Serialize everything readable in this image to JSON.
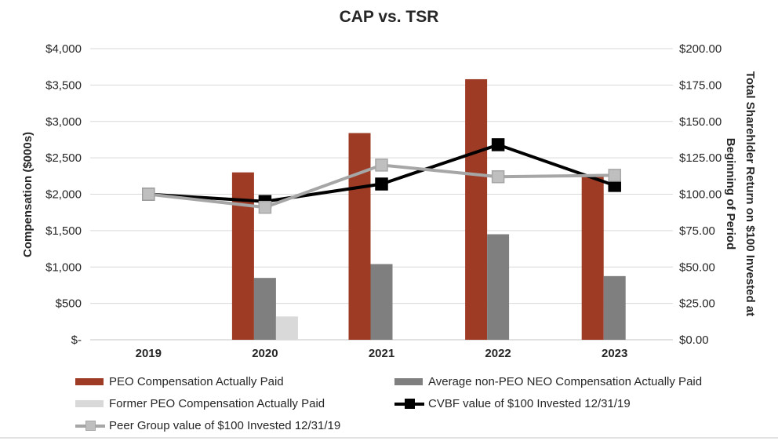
{
  "title": "CAP vs. TSR",
  "chart_data": {
    "type": "bar",
    "subtype": "grouped bars + lines, dual y-axis",
    "categories": [
      "2019",
      "2020",
      "2021",
      "2022",
      "2023"
    ],
    "bar_series": [
      {
        "name": "PEO Compensation Actually Paid",
        "axis": "left",
        "color": "#9E3B25",
        "values": [
          null,
          2300,
          2840,
          3580,
          2240
        ]
      },
      {
        "name": "Average non-PEO NEO Compensation Actually Paid",
        "axis": "left",
        "color": "#7F7F7F",
        "values": [
          null,
          850,
          1040,
          1450,
          875
        ]
      },
      {
        "name": "Former PEO Compensation Actually Paid",
        "axis": "left",
        "color": "#D9D9D9",
        "values": [
          null,
          320,
          null,
          null,
          null
        ]
      }
    ],
    "line_series": [
      {
        "name": "CVBF value of $100 Invested 12/31/19",
        "axis": "right",
        "color": "#000000",
        "marker_color": "#000000",
        "values": [
          100,
          95,
          107,
          134,
          106
        ]
      },
      {
        "name": "Peer Group value of $100 Invested 12/31/19",
        "axis": "right",
        "color": "#A6A6A6",
        "marker_color": "#BFBFBF",
        "values": [
          100,
          91,
          120,
          112,
          113
        ]
      }
    ],
    "left_axis": {
      "title": "Compensation ($000s)",
      "min": 0,
      "max": 4000,
      "step": 500,
      "tick_labels": [
        "$-",
        "$500",
        "$1,000",
        "$1,500",
        "$2,000",
        "$2,500",
        "$3,000",
        "$3,500",
        "$4,000"
      ]
    },
    "right_axis": {
      "title_line1": "Total Sharehlder Return on $100 Invested at",
      "title_line2": "Beginning of Period",
      "min": 0,
      "max": 200,
      "step": 25,
      "tick_labels": [
        "$0.00",
        "$25.00",
        "$50.00",
        "$75.00",
        "$100.00",
        "$125.00",
        "$150.00",
        "$175.00",
        "$200.00"
      ]
    },
    "grid": "horizontal gridlines on",
    "gridline_color": "#D9D9D9",
    "legend_position": "bottom"
  }
}
